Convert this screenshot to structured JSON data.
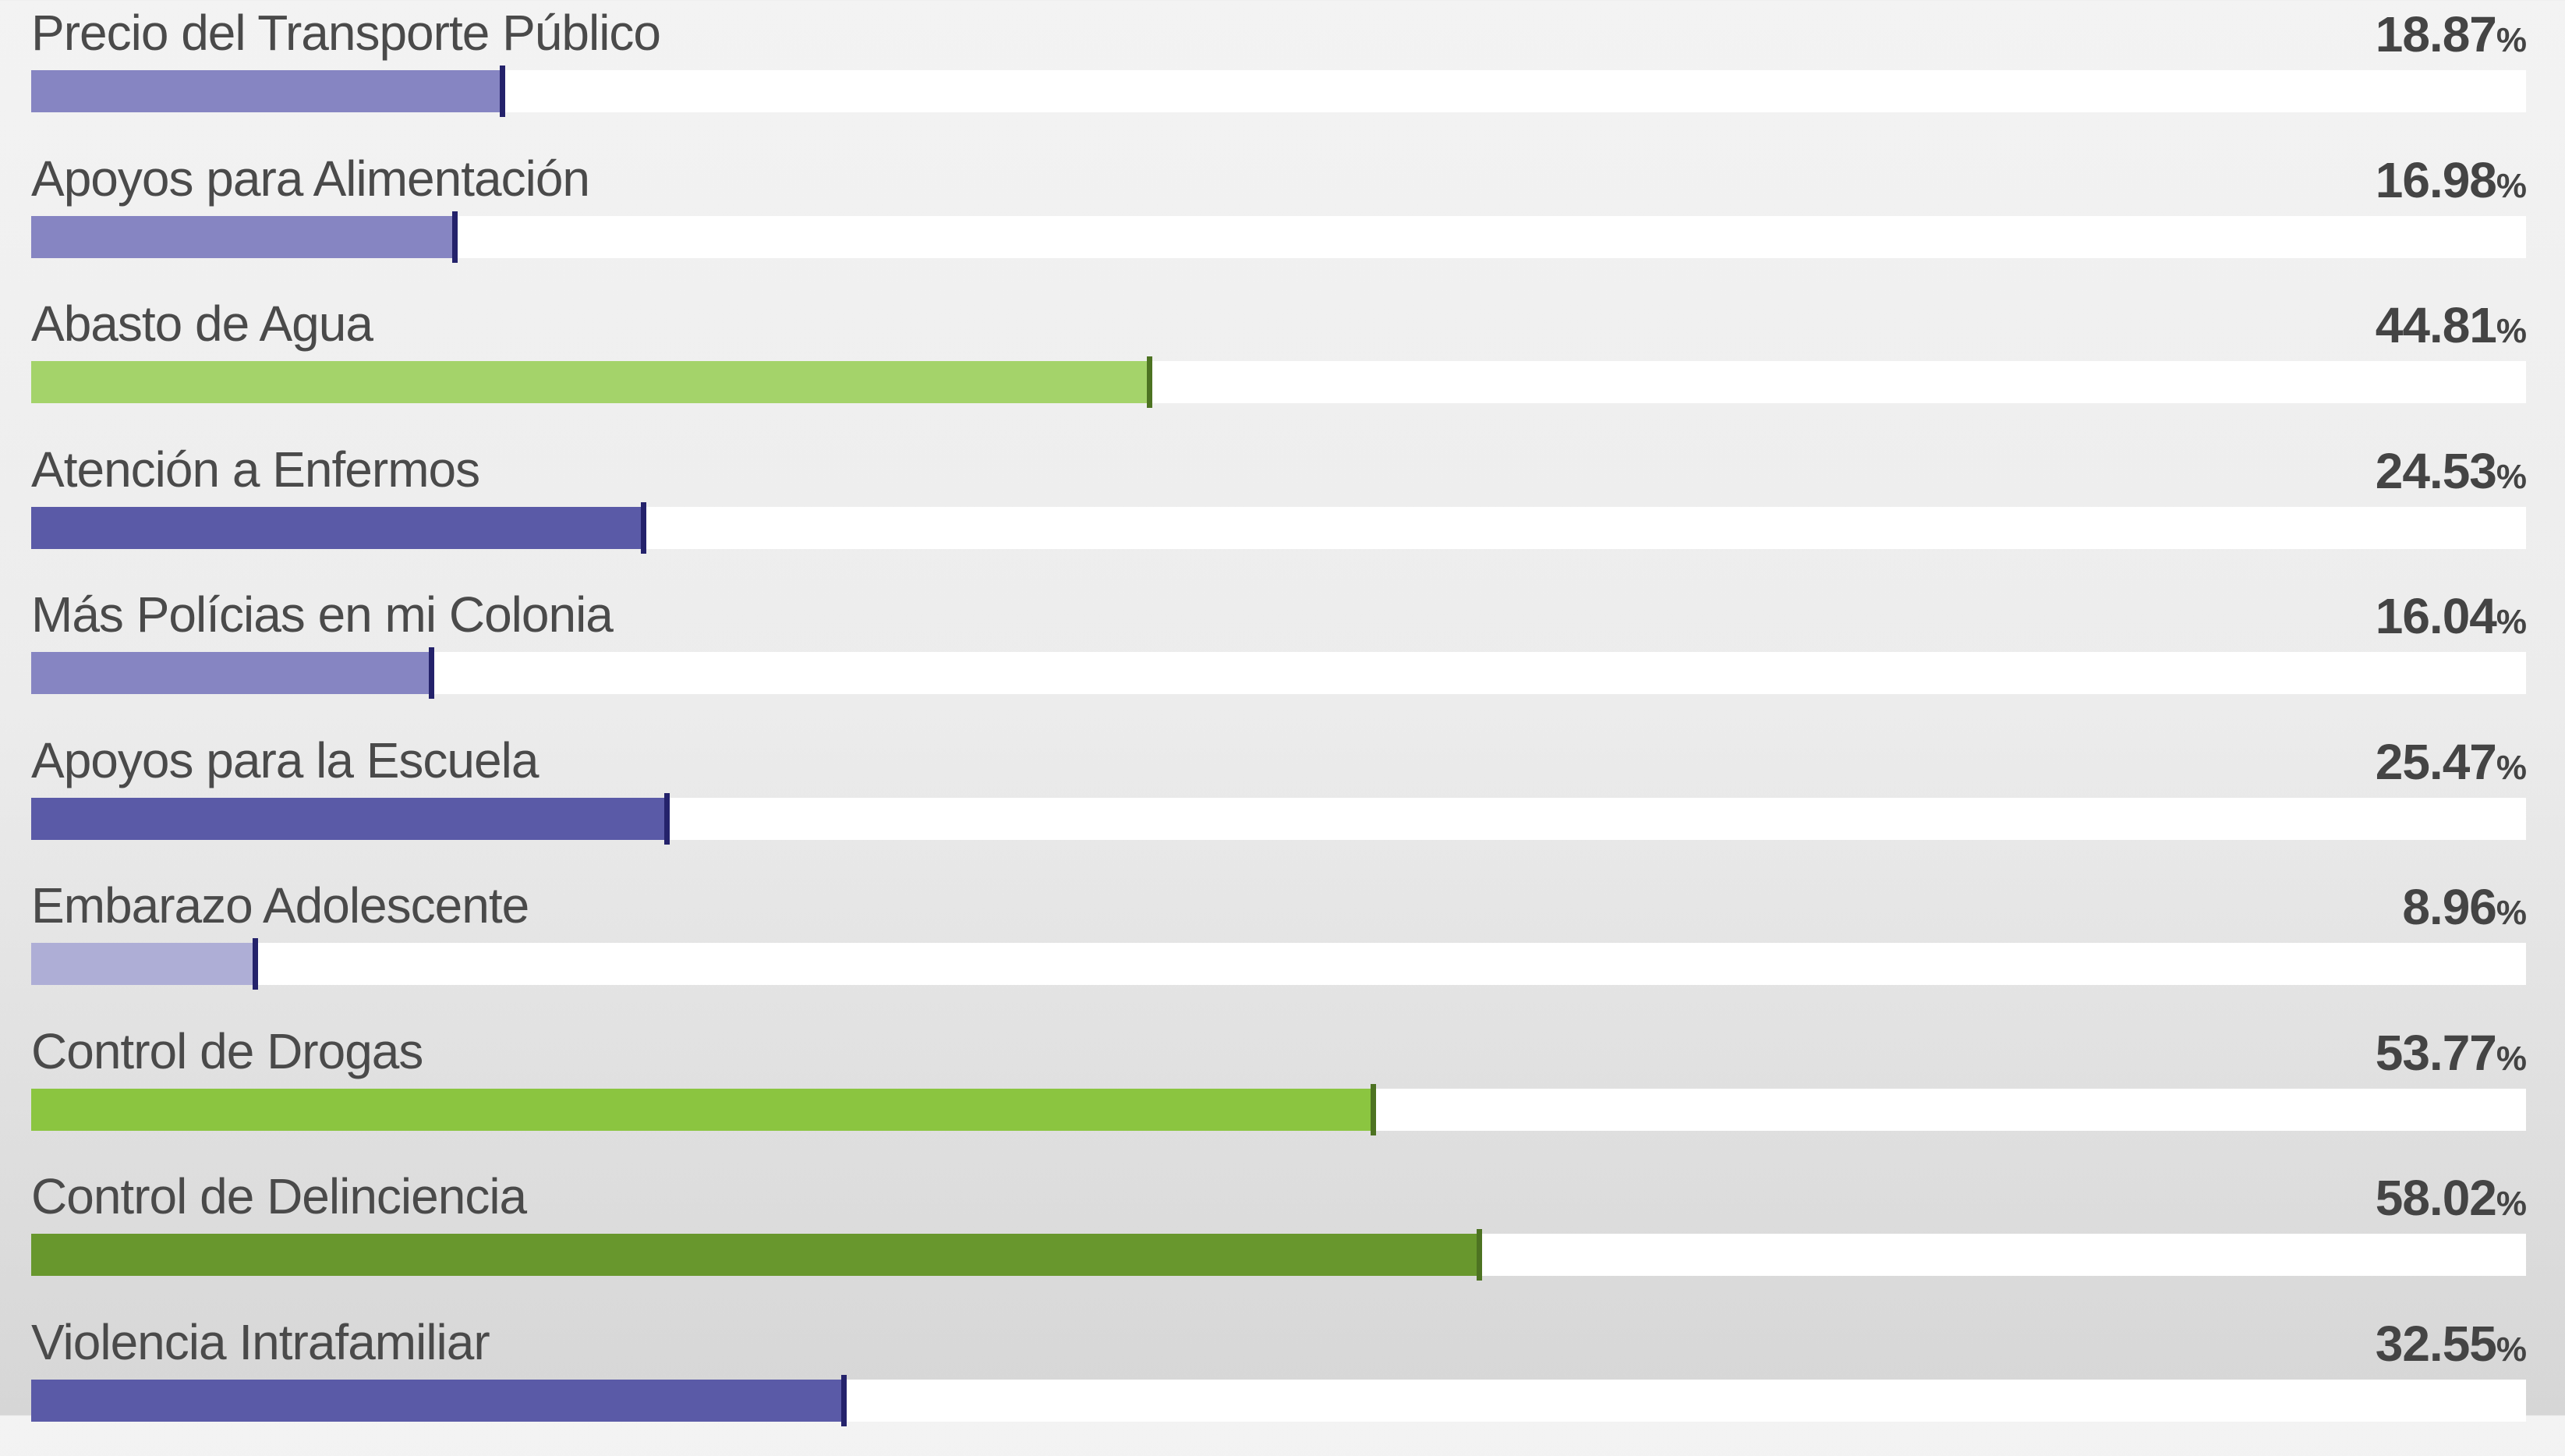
{
  "colors": {
    "purple_light": "#aeaed6",
    "purple_mid": "#8685c2",
    "purple_dark": "#5a5aa7",
    "purple_marker": "#24226b",
    "green_light": "#a4d36a",
    "green_mid": "#8bc540",
    "green_dark": "#68972d",
    "green_marker": "#4d7322"
  },
  "chart_data": {
    "type": "bar",
    "orientation": "horizontal",
    "xlim": [
      0,
      100
    ],
    "unit": "%",
    "categories": [
      "Precio del Transporte Público",
      "Apoyos para Alimentación",
      "Abasto de Agua",
      "Atención a Enfermos",
      "Más Polícias en mi Colonia",
      "Apoyos para la Escuela",
      "Embarazo Adolescente",
      "Control de Drogas",
      "Control de Delinciencia",
      "Violencia Intrafamiliar"
    ],
    "values": [
      18.87,
      16.98,
      44.81,
      24.53,
      16.04,
      25.47,
      8.96,
      53.77,
      58.02,
      32.55
    ],
    "value_labels": [
      "18.87",
      "16.98",
      "44.81",
      "24.53",
      "16.04",
      "25.47",
      "8.96",
      "53.77",
      "58.02",
      "32.55"
    ],
    "bar_colors": [
      "#8685c2",
      "#8685c2",
      "#a4d36a",
      "#5a5aa7",
      "#8685c2",
      "#5a5aa7",
      "#aeaed6",
      "#8bc540",
      "#68972d",
      "#5a5aa7"
    ],
    "marker_colors": [
      "#24226b",
      "#24226b",
      "#4d7322",
      "#24226b",
      "#24226b",
      "#24226b",
      "#24226b",
      "#4d7322",
      "#4d7322",
      "#24226b"
    ],
    "grid": false,
    "legend": "none"
  }
}
